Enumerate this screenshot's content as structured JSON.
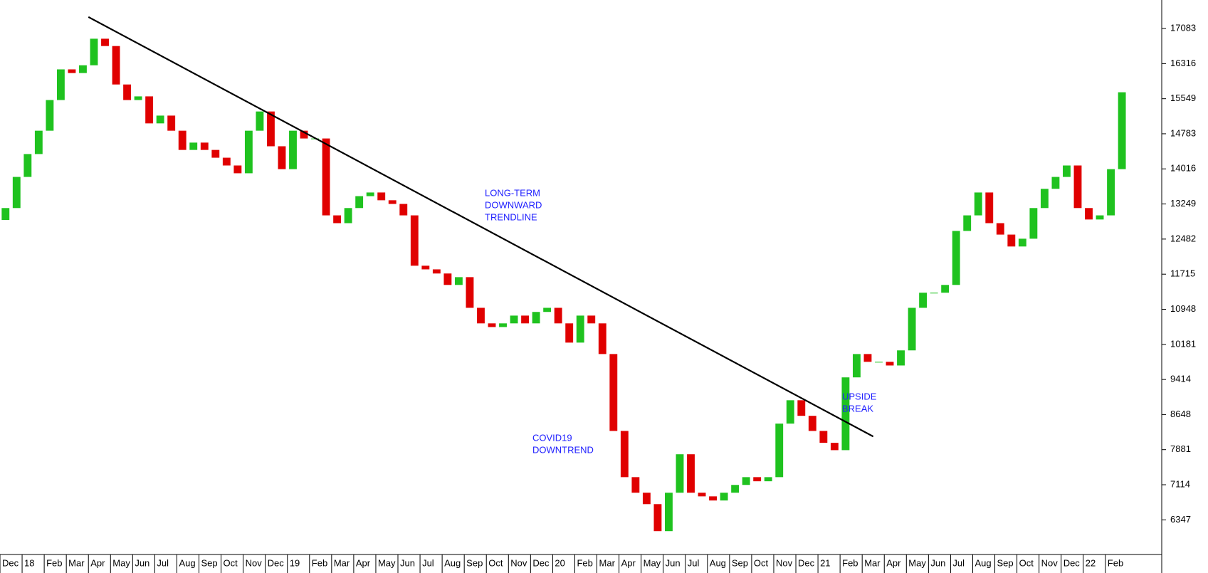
{
  "chart_data": {
    "type": "candlestick",
    "x": [
      0,
      0.5,
      1,
      1.5,
      2,
      2.5,
      3,
      3.5,
      4,
      4.5,
      5,
      5.5,
      6,
      6.5,
      7,
      7.5,
      8,
      8.5,
      9,
      9.5,
      10,
      10.5,
      11,
      11.5,
      12,
      12.5,
      13,
      13.5,
      14,
      14.5,
      15,
      15.5,
      16,
      16.5,
      17,
      17.5,
      18,
      18.5,
      19,
      19.5,
      20,
      20.5,
      21,
      21.5,
      22,
      22.5,
      23,
      23.5,
      24,
      24.5,
      25,
      25.5,
      26,
      26.5,
      27,
      27.5,
      28,
      28.5,
      29,
      29.5,
      30,
      30.5,
      31,
      31.5,
      32,
      32.5,
      33,
      33.5,
      34,
      34.5,
      35,
      35.5,
      36,
      36.5,
      37,
      37.5,
      38,
      38.5,
      39,
      39.5,
      40,
      40.5,
      41,
      41.5,
      42,
      42.5,
      43,
      43.5,
      44,
      44.5,
      45,
      45.5,
      46,
      46.5,
      47,
      47.5,
      48,
      48.5,
      49,
      49.5,
      50,
      50.5
    ],
    "open": [
      12900,
      13160,
      13840,
      14340,
      14850,
      15520,
      16190,
      16110,
      16280,
      16860,
      16700,
      15860,
      15520,
      15600,
      15010,
      15180,
      14850,
      14430,
      14590,
      14430,
      14260,
      14090,
      13920,
      14850,
      15270,
      14510,
      14010,
      14850,
      14680,
      14680,
      13000,
      12830,
      13160,
      13420,
      13500,
      13330,
      13250,
      13000,
      11900,
      11820,
      11730,
      11480,
      11650,
      10980,
      10640,
      10560,
      10640,
      10810,
      10640,
      10890,
      10980,
      10640,
      10220,
      10810,
      10640,
      9970,
      8290,
      7280,
      6940,
      6690,
      6100,
      6940,
      7780,
      6940,
      6860,
      6770,
      6940,
      7110,
      7280,
      7190,
      7280,
      8450,
      8960,
      8620,
      8290,
      8030,
      7870,
      9460,
      9970,
      9800,
      9800,
      9720,
      10050,
      10980,
      11310,
      11310,
      11480,
      12660,
      13000,
      13500,
      12830,
      12580,
      12320,
      12490,
      13160,
      13580,
      13840,
      14090,
      13160,
      12910,
      13000,
      14010
    ],
    "close": [
      13160,
      13840,
      14340,
      14850,
      15520,
      16190,
      16110,
      16280,
      16860,
      16700,
      15860,
      15520,
      15600,
      15010,
      15180,
      14850,
      14430,
      14590,
      14430,
      14260,
      14090,
      13920,
      14850,
      15270,
      14510,
      14010,
      14850,
      14680,
      14680,
      13000,
      12830,
      13160,
      13420,
      13500,
      13330,
      13250,
      13000,
      11900,
      11820,
      11730,
      11480,
      11650,
      10980,
      10640,
      10560,
      10640,
      10810,
      10640,
      10890,
      10980,
      10640,
      10220,
      10810,
      10640,
      9970,
      8290,
      7280,
      6940,
      6690,
      6100,
      6940,
      7780,
      6940,
      6860,
      6770,
      6940,
      7110,
      7280,
      7190,
      7280,
      8450,
      8960,
      8620,
      8290,
      8030,
      7870,
      9460,
      9970,
      9800,
      9800,
      9720,
      10050,
      10980,
      11310,
      11310,
      11480,
      12660,
      13000,
      13500,
      12830,
      12580,
      12320,
      12490,
      13160,
      13580,
      13840,
      14090,
      13160,
      12910,
      13000,
      14010,
      15690
    ],
    "up_color": "#1fc21f",
    "down_color": "#e00000",
    "xlim": [
      0,
      52.55
    ],
    "ylim": [
      5590,
      17706
    ],
    "xticks": [
      {
        "value": 0,
        "label": "Dec"
      },
      {
        "value": 1,
        "label": "18"
      },
      {
        "value": 2,
        "label": "Feb"
      },
      {
        "value": 3,
        "label": "Mar"
      },
      {
        "value": 4,
        "label": "Apr"
      },
      {
        "value": 5,
        "label": "May"
      },
      {
        "value": 6,
        "label": "Jun"
      },
      {
        "value": 7,
        "label": "Jul"
      },
      {
        "value": 8,
        "label": "Aug"
      },
      {
        "value": 9,
        "label": "Sep"
      },
      {
        "value": 10,
        "label": "Oct"
      },
      {
        "value": 11,
        "label": "Nov"
      },
      {
        "value": 12,
        "label": "Dec"
      },
      {
        "value": 13,
        "label": "19"
      },
      {
        "value": 14,
        "label": "Feb"
      },
      {
        "value": 15,
        "label": "Mar"
      },
      {
        "value": 16,
        "label": "Apr"
      },
      {
        "value": 17,
        "label": "May"
      },
      {
        "value": 18,
        "label": "Jun"
      },
      {
        "value": 19,
        "label": "Jul"
      },
      {
        "value": 20,
        "label": "Aug"
      },
      {
        "value": 21,
        "label": "Sep"
      },
      {
        "value": 22,
        "label": "Oct"
      },
      {
        "value": 23,
        "label": "Nov"
      },
      {
        "value": 24,
        "label": "Dec"
      },
      {
        "value": 25,
        "label": "20"
      },
      {
        "value": 26,
        "label": "Feb"
      },
      {
        "value": 27,
        "label": "Mar"
      },
      {
        "value": 28,
        "label": "Apr"
      },
      {
        "value": 29,
        "label": "May"
      },
      {
        "value": 30,
        "label": "Jun"
      },
      {
        "value": 31,
        "label": "Jul"
      },
      {
        "value": 32,
        "label": "Aug"
      },
      {
        "value": 33,
        "label": "Sep"
      },
      {
        "value": 34,
        "label": "Oct"
      },
      {
        "value": 35,
        "label": "Nov"
      },
      {
        "value": 36,
        "label": "Dec"
      },
      {
        "value": 37,
        "label": "21"
      },
      {
        "value": 38,
        "label": "Feb"
      },
      {
        "value": 39,
        "label": "Mar"
      },
      {
        "value": 40,
        "label": "Apr"
      },
      {
        "value": 41,
        "label": "May"
      },
      {
        "value": 42,
        "label": "Jun"
      },
      {
        "value": 43,
        "label": "Jul"
      },
      {
        "value": 44,
        "label": "Aug"
      },
      {
        "value": 45,
        "label": "Sep"
      },
      {
        "value": 46,
        "label": "Oct"
      },
      {
        "value": 47,
        "label": "Nov"
      },
      {
        "value": 48,
        "label": "Dec"
      },
      {
        "value": 49,
        "label": "22"
      },
      {
        "value": 50,
        "label": "Feb"
      }
    ],
    "yticks": [
      17083,
      16316,
      15549,
      14783,
      14016,
      13249,
      12482,
      11715,
      10948,
      10181,
      9414,
      8648,
      7881,
      7114,
      6347
    ],
    "trendline": {
      "x": [
        4,
        39.5
      ],
      "y": [
        17335,
        8168
      ],
      "color": "#000000"
    },
    "annotation_color": "#2020ff",
    "annotations": [
      {
        "lines": [
          "LONG-TERM",
          "DOWNWARD",
          "TRENDLINE"
        ]
      },
      {
        "lines": [
          "COVID19",
          "DOWNTREND"
        ]
      },
      {
        "lines": [
          "UPSIDE",
          "BREAK"
        ]
      }
    ]
  }
}
